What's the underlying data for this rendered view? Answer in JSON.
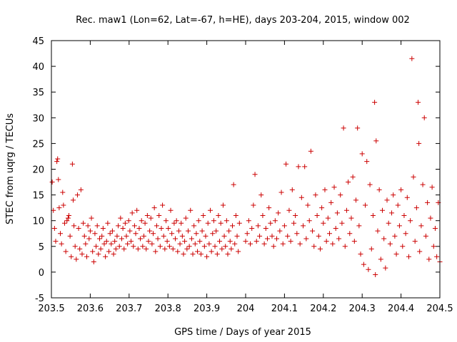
{
  "chart_data": {
    "type": "scatter",
    "title": "Rec. maw1 (Lon=62, Lat=-67, h=HE), days 203-204, 2015, window 002",
    "xlabel": "GPS time / Days of year 2015",
    "ylabel": "STEC from uqrg / TECUs",
    "xlim": [
      203.5,
      204.5
    ],
    "ylim": [
      -5,
      45
    ],
    "xticks": [
      "203.5",
      "203.6",
      "203.7",
      "203.8",
      "203.9",
      "204",
      "204.1",
      "204.2",
      "204.3",
      "204.4",
      "204.5"
    ],
    "yticks": [
      "-5",
      "0",
      "5",
      "10",
      "15",
      "20",
      "25",
      "30",
      "35",
      "40",
      "45"
    ],
    "grid": false,
    "legend": "none",
    "marker": "+",
    "series": [
      {
        "name": "STEC",
        "color": "#cc0000",
        "points": [
          [
            203.502,
            17.5
          ],
          [
            203.505,
            12.0
          ],
          [
            203.508,
            8.5
          ],
          [
            203.511,
            6.0
          ],
          [
            203.514,
            21.5
          ],
          [
            203.516,
            22.0
          ],
          [
            203.518,
            18.0
          ],
          [
            203.52,
            12.5
          ],
          [
            203.523,
            7.5
          ],
          [
            203.526,
            5.5
          ],
          [
            203.529,
            15.5
          ],
          [
            203.531,
            13.0
          ],
          [
            203.534,
            9.5
          ],
          [
            203.537,
            4.0
          ],
          [
            203.54,
            10.0
          ],
          [
            203.543,
            10.5
          ],
          [
            203.545,
            11.0
          ],
          [
            203.548,
            7.0
          ],
          [
            203.551,
            3.0
          ],
          [
            203.554,
            21.0
          ],
          [
            203.556,
            14.0
          ],
          [
            203.558,
            9.0
          ],
          [
            203.561,
            5.0
          ],
          [
            203.564,
            2.5
          ],
          [
            203.567,
            15.0
          ],
          [
            203.57,
            8.5
          ],
          [
            203.573,
            4.5
          ],
          [
            203.576,
            16.0
          ],
          [
            203.579,
            3.5
          ],
          [
            203.582,
            9.5
          ],
          [
            203.585,
            7.0
          ],
          [
            203.588,
            5.5
          ],
          [
            203.591,
            3.0
          ],
          [
            203.594,
            9.0
          ],
          [
            203.597,
            6.5
          ],
          [
            203.6,
            8.0
          ],
          [
            203.603,
            10.5
          ],
          [
            203.606,
            4.0
          ],
          [
            203.609,
            2.0
          ],
          [
            203.612,
            7.5
          ],
          [
            203.615,
            5.0
          ],
          [
            203.618,
            9.0
          ],
          [
            203.621,
            3.5
          ],
          [
            203.624,
            6.5
          ],
          [
            203.627,
            4.5
          ],
          [
            203.63,
            7.0
          ],
          [
            203.633,
            8.5
          ],
          [
            203.636,
            5.5
          ],
          [
            203.639,
            3.0
          ],
          [
            203.642,
            6.0
          ],
          [
            203.645,
            9.5
          ],
          [
            203.648,
            4.0
          ],
          [
            203.651,
            7.5
          ],
          [
            203.654,
            5.5
          ],
          [
            203.657,
            8.0
          ],
          [
            203.66,
            3.5
          ],
          [
            203.663,
            6.0
          ],
          [
            203.666,
            4.5
          ],
          [
            203.669,
            7.0
          ],
          [
            203.672,
            9.0
          ],
          [
            203.675,
            5.0
          ],
          [
            203.678,
            10.5
          ],
          [
            203.681,
            6.5
          ],
          [
            203.684,
            8.5
          ],
          [
            203.687,
            4.5
          ],
          [
            203.69,
            9.5
          ],
          [
            203.693,
            7.0
          ],
          [
            203.696,
            5.5
          ],
          [
            203.699,
            10.0
          ],
          [
            203.702,
            8.0
          ],
          [
            203.705,
            6.0
          ],
          [
            203.708,
            11.5
          ],
          [
            203.711,
            5.0
          ],
          [
            203.714,
            9.0
          ],
          [
            203.717,
            7.5
          ],
          [
            203.72,
            12.0
          ],
          [
            203.723,
            4.5
          ],
          [
            203.726,
            8.5
          ],
          [
            203.729,
            6.5
          ],
          [
            203.732,
            10.0
          ],
          [
            203.735,
            5.0
          ],
          [
            203.738,
            7.0
          ],
          [
            203.741,
            9.5
          ],
          [
            203.744,
            4.5
          ],
          [
            203.747,
            11.0
          ],
          [
            203.75,
            6.0
          ],
          [
            203.753,
            8.0
          ],
          [
            203.756,
            10.5
          ],
          [
            203.759,
            5.5
          ],
          [
            203.762,
            7.5
          ],
          [
            203.765,
            12.5
          ],
          [
            203.768,
            4.0
          ],
          [
            203.771,
            9.0
          ],
          [
            203.774,
            6.5
          ],
          [
            203.777,
            11.0
          ],
          [
            203.78,
            5.0
          ],
          [
            203.783,
            8.5
          ],
          [
            203.786,
            13.0
          ],
          [
            203.789,
            7.0
          ],
          [
            203.792,
            4.5
          ],
          [
            203.795,
            10.0
          ],
          [
            203.798,
            6.0
          ],
          [
            203.801,
            8.5
          ],
          [
            203.804,
            5.0
          ],
          [
            203.807,
            12.0
          ],
          [
            203.81,
            7.5
          ],
          [
            203.813,
            4.5
          ],
          [
            203.816,
            9.5
          ],
          [
            203.819,
            6.5
          ],
          [
            203.822,
            10.0
          ],
          [
            203.825,
            4.0
          ],
          [
            203.828,
            8.0
          ],
          [
            203.831,
            5.5
          ],
          [
            203.834,
            9.5
          ],
          [
            203.837,
            7.0
          ],
          [
            203.84,
            3.5
          ],
          [
            203.843,
            6.0
          ],
          [
            203.846,
            10.5
          ],
          [
            203.849,
            4.5
          ],
          [
            203.852,
            8.0
          ],
          [
            203.855,
            5.0
          ],
          [
            203.858,
            12.0
          ],
          [
            203.861,
            6.5
          ],
          [
            203.864,
            3.5
          ],
          [
            203.867,
            9.0
          ],
          [
            203.87,
            5.5
          ],
          [
            203.873,
            7.5
          ],
          [
            203.876,
            4.0
          ],
          [
            203.879,
            10.0
          ],
          [
            203.882,
            6.0
          ],
          [
            203.885,
            3.5
          ],
          [
            203.888,
            8.0
          ],
          [
            203.891,
            11.0
          ],
          [
            203.894,
            5.0
          ],
          [
            203.897,
            7.0
          ],
          [
            203.9,
            3.0
          ],
          [
            203.903,
            9.5
          ],
          [
            203.906,
            5.5
          ],
          [
            203.909,
            12.0
          ],
          [
            203.912,
            4.0
          ],
          [
            203.915,
            7.5
          ],
          [
            203.918,
            10.0
          ],
          [
            203.921,
            5.0
          ],
          [
            203.924,
            8.0
          ],
          [
            203.927,
            3.5
          ],
          [
            203.93,
            11.0
          ],
          [
            203.933,
            6.0
          ],
          [
            203.936,
            9.5
          ],
          [
            203.939,
            4.5
          ],
          [
            203.942,
            13.0
          ],
          [
            203.945,
            7.0
          ],
          [
            203.948,
            5.0
          ],
          [
            203.951,
            10.0
          ],
          [
            203.954,
            3.5
          ],
          [
            203.957,
            8.0
          ],
          [
            203.96,
            6.0
          ],
          [
            203.963,
            4.5
          ],
          [
            203.966,
            9.0
          ],
          [
            203.969,
            17.0
          ],
          [
            203.972,
            5.5
          ],
          [
            203.975,
            11.0
          ],
          [
            203.978,
            7.0
          ],
          [
            203.981,
            4.0
          ],
          [
            203.984,
            9.5
          ],
          [
            204.0,
            6.0
          ],
          [
            204.004,
            7.5
          ],
          [
            204.008,
            10.0
          ],
          [
            204.012,
            5.5
          ],
          [
            204.016,
            8.5
          ],
          [
            204.02,
            13.0
          ],
          [
            204.024,
            19.0
          ],
          [
            204.028,
            6.0
          ],
          [
            204.032,
            9.0
          ],
          [
            204.036,
            7.0
          ],
          [
            204.04,
            15.0
          ],
          [
            204.044,
            11.0
          ],
          [
            204.048,
            5.5
          ],
          [
            204.052,
            8.5
          ],
          [
            204.056,
            6.5
          ],
          [
            204.06,
            12.5
          ],
          [
            204.064,
            9.5
          ],
          [
            204.068,
            7.0
          ],
          [
            204.072,
            5.0
          ],
          [
            204.076,
            10.0
          ],
          [
            204.08,
            6.5
          ],
          [
            204.084,
            11.5
          ],
          [
            204.088,
            8.0
          ],
          [
            204.092,
            15.5
          ],
          [
            204.096,
            5.5
          ],
          [
            204.1,
            9.0
          ],
          [
            204.104,
            21.0
          ],
          [
            204.108,
            7.0
          ],
          [
            204.112,
            12.0
          ],
          [
            204.116,
            6.0
          ],
          [
            204.12,
            16.0
          ],
          [
            204.124,
            9.5
          ],
          [
            204.128,
            11.0
          ],
          [
            204.132,
            7.5
          ],
          [
            204.136,
            20.5
          ],
          [
            204.14,
            5.5
          ],
          [
            204.144,
            14.5
          ],
          [
            204.148,
            9.0
          ],
          [
            204.152,
            20.5
          ],
          [
            204.156,
            6.5
          ],
          [
            204.16,
            13.0
          ],
          [
            204.164,
            10.0
          ],
          [
            204.168,
            23.5
          ],
          [
            204.172,
            8.0
          ],
          [
            204.176,
            5.0
          ],
          [
            204.18,
            15.0
          ],
          [
            204.184,
            11.0
          ],
          [
            204.188,
            7.0
          ],
          [
            204.192,
            4.5
          ],
          [
            204.196,
            12.5
          ],
          [
            204.2,
            9.5
          ],
          [
            204.204,
            16.0
          ],
          [
            204.208,
            6.0
          ],
          [
            204.212,
            10.5
          ],
          [
            204.216,
            7.5
          ],
          [
            204.22,
            13.5
          ],
          [
            204.224,
            5.5
          ],
          [
            204.228,
            16.5
          ],
          [
            204.232,
            8.5
          ],
          [
            204.236,
            11.5
          ],
          [
            204.24,
            6.5
          ],
          [
            204.244,
            15.0
          ],
          [
            204.248,
            9.5
          ],
          [
            204.252,
            28.0
          ],
          [
            204.256,
            5.0
          ],
          [
            204.26,
            12.0
          ],
          [
            204.264,
            17.5
          ],
          [
            204.268,
            7.5
          ],
          [
            204.272,
            10.5
          ],
          [
            204.276,
            18.5
          ],
          [
            204.28,
            6.0
          ],
          [
            204.284,
            14.0
          ],
          [
            204.288,
            28.0
          ],
          [
            204.292,
            9.0
          ],
          [
            204.296,
            3.5
          ],
          [
            204.3,
            23.0
          ],
          [
            204.304,
            1.5
          ],
          [
            204.308,
            13.0
          ],
          [
            204.312,
            21.5
          ],
          [
            204.316,
            0.5
          ],
          [
            204.32,
            17.0
          ],
          [
            204.324,
            4.5
          ],
          [
            204.328,
            11.0
          ],
          [
            204.332,
            33.0
          ],
          [
            204.334,
            -0.5
          ],
          [
            204.336,
            25.5
          ],
          [
            204.34,
            8.0
          ],
          [
            204.344,
            16.0
          ],
          [
            204.348,
            2.5
          ],
          [
            204.352,
            12.0
          ],
          [
            204.356,
            6.5
          ],
          [
            204.36,
            0.8
          ],
          [
            204.364,
            14.0
          ],
          [
            204.368,
            9.5
          ],
          [
            204.372,
            5.5
          ],
          [
            204.376,
            11.5
          ],
          [
            204.38,
            15.0
          ],
          [
            204.384,
            7.0
          ],
          [
            204.388,
            3.5
          ],
          [
            204.392,
            13.0
          ],
          [
            204.396,
            9.0
          ],
          [
            204.4,
            16.0
          ],
          [
            204.404,
            5.0
          ],
          [
            204.408,
            11.0
          ],
          [
            204.412,
            7.5
          ],
          [
            204.416,
            14.5
          ],
          [
            204.42,
            3.0
          ],
          [
            204.424,
            10.0
          ],
          [
            204.428,
            41.5
          ],
          [
            204.432,
            18.5
          ],
          [
            204.436,
            6.0
          ],
          [
            204.44,
            12.5
          ],
          [
            204.444,
            33.0
          ],
          [
            204.446,
            25.0
          ],
          [
            204.448,
            4.0
          ],
          [
            204.452,
            9.0
          ],
          [
            204.456,
            17.0
          ],
          [
            204.46,
            30.0
          ],
          [
            204.464,
            7.0
          ],
          [
            204.468,
            13.5
          ],
          [
            204.472,
            2.5
          ],
          [
            204.476,
            10.5
          ],
          [
            204.48,
            16.5
          ],
          [
            204.484,
            5.0
          ],
          [
            204.488,
            8.5
          ],
          [
            204.492,
            3.0
          ],
          [
            204.496,
            13.5
          ],
          [
            204.5,
            2.0
          ]
        ]
      }
    ]
  }
}
